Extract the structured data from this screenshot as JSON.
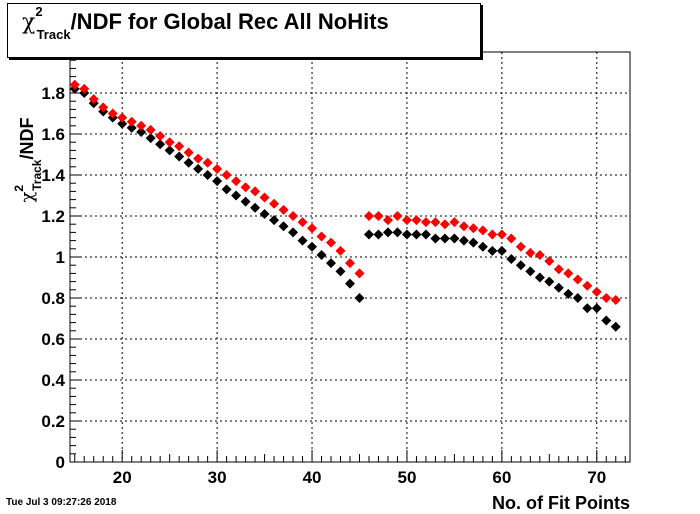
{
  "title": {
    "chi_symbol": "χ",
    "superscript": "2",
    "subscript": "Track",
    "rest": "/NDF for Global Rec All NoHits"
  },
  "timestamp": "Tue Jul  3 09:27:26 2018",
  "chart_data": {
    "type": "scatter",
    "xlabel": "No. of Fit Points",
    "ylabel": {
      "chi": "χ",
      "sup": "2",
      "sub": "Track",
      "rest": "/NDF"
    },
    "xlim": [
      14.5,
      73.5
    ],
    "ylim": [
      0,
      2.0
    ],
    "x_ticks": [
      20,
      30,
      40,
      50,
      60,
      70
    ],
    "y_ticks": [
      0,
      0.2,
      0.4,
      0.6,
      0.8,
      1,
      1.2,
      1.4,
      1.6,
      1.8
    ],
    "y_tick_labels": [
      "0",
      "0.2",
      "0.4",
      "0.6",
      "0.8",
      "1",
      "1.2",
      "1.4",
      "1.6",
      "1.8"
    ],
    "grid": true,
    "series": [
      {
        "color": "#000000",
        "points": [
          [
            15,
            1.82
          ],
          [
            16,
            1.8
          ],
          [
            17,
            1.75
          ],
          [
            18,
            1.71
          ],
          [
            19,
            1.68
          ],
          [
            20,
            1.65
          ],
          [
            21,
            1.63
          ],
          [
            22,
            1.61
          ],
          [
            23,
            1.58
          ],
          [
            24,
            1.55
          ],
          [
            25,
            1.52
          ],
          [
            26,
            1.49
          ],
          [
            27,
            1.46
          ],
          [
            28,
            1.43
          ],
          [
            29,
            1.4
          ],
          [
            30,
            1.37
          ],
          [
            31,
            1.33
          ],
          [
            32,
            1.3
          ],
          [
            33,
            1.27
          ],
          [
            34,
            1.24
          ],
          [
            35,
            1.21
          ],
          [
            36,
            1.18
          ],
          [
            37,
            1.15
          ],
          [
            38,
            1.12
          ],
          [
            39,
            1.08
          ],
          [
            40,
            1.05
          ],
          [
            41,
            1.01
          ],
          [
            42,
            0.97
          ],
          [
            43,
            0.93
          ],
          [
            44,
            0.87
          ],
          [
            45,
            0.8
          ],
          [
            46,
            1.11
          ],
          [
            47,
            1.11
          ],
          [
            48,
            1.12
          ],
          [
            49,
            1.12
          ],
          [
            50,
            1.11
          ],
          [
            51,
            1.11
          ],
          [
            52,
            1.11
          ],
          [
            53,
            1.09
          ],
          [
            54,
            1.09
          ],
          [
            55,
            1.09
          ],
          [
            56,
            1.08
          ],
          [
            57,
            1.07
          ],
          [
            58,
            1.05
          ],
          [
            59,
            1.03
          ],
          [
            60,
            1.03
          ],
          [
            61,
            0.99
          ],
          [
            62,
            0.96
          ],
          [
            63,
            0.93
          ],
          [
            64,
            0.9
          ],
          [
            65,
            0.88
          ],
          [
            66,
            0.85
          ],
          [
            67,
            0.82
          ],
          [
            68,
            0.8
          ],
          [
            69,
            0.75
          ],
          [
            70,
            0.75
          ],
          [
            71,
            0.69
          ],
          [
            72,
            0.66
          ]
        ]
      },
      {
        "color": "#ff0000",
        "points": [
          [
            15,
            1.84
          ],
          [
            16,
            1.82
          ],
          [
            17,
            1.77
          ],
          [
            18,
            1.73
          ],
          [
            19,
            1.7
          ],
          [
            20,
            1.68
          ],
          [
            21,
            1.66
          ],
          [
            22,
            1.64
          ],
          [
            23,
            1.62
          ],
          [
            24,
            1.59
          ],
          [
            25,
            1.56
          ],
          [
            26,
            1.54
          ],
          [
            27,
            1.51
          ],
          [
            28,
            1.48
          ],
          [
            29,
            1.46
          ],
          [
            30,
            1.43
          ],
          [
            31,
            1.4
          ],
          [
            32,
            1.37
          ],
          [
            33,
            1.34
          ],
          [
            34,
            1.32
          ],
          [
            35,
            1.29
          ],
          [
            36,
            1.26
          ],
          [
            37,
            1.23
          ],
          [
            38,
            1.2
          ],
          [
            39,
            1.17
          ],
          [
            40,
            1.14
          ],
          [
            41,
            1.1
          ],
          [
            42,
            1.07
          ],
          [
            43,
            1.03
          ],
          [
            44,
            0.97
          ],
          [
            45,
            0.92
          ],
          [
            46,
            1.2
          ],
          [
            47,
            1.2
          ],
          [
            48,
            1.18
          ],
          [
            49,
            1.2
          ],
          [
            50,
            1.18
          ],
          [
            51,
            1.18
          ],
          [
            52,
            1.17
          ],
          [
            53,
            1.17
          ],
          [
            54,
            1.16
          ],
          [
            55,
            1.17
          ],
          [
            56,
            1.15
          ],
          [
            57,
            1.14
          ],
          [
            58,
            1.13
          ],
          [
            59,
            1.11
          ],
          [
            60,
            1.11
          ],
          [
            61,
            1.09
          ],
          [
            62,
            1.05
          ],
          [
            63,
            1.02
          ],
          [
            64,
            1.01
          ],
          [
            65,
            0.98
          ],
          [
            66,
            0.94
          ],
          [
            67,
            0.92
          ],
          [
            68,
            0.89
          ],
          [
            69,
            0.86
          ],
          [
            70,
            0.83
          ],
          [
            71,
            0.8
          ],
          [
            72,
            0.79
          ]
        ]
      }
    ]
  }
}
